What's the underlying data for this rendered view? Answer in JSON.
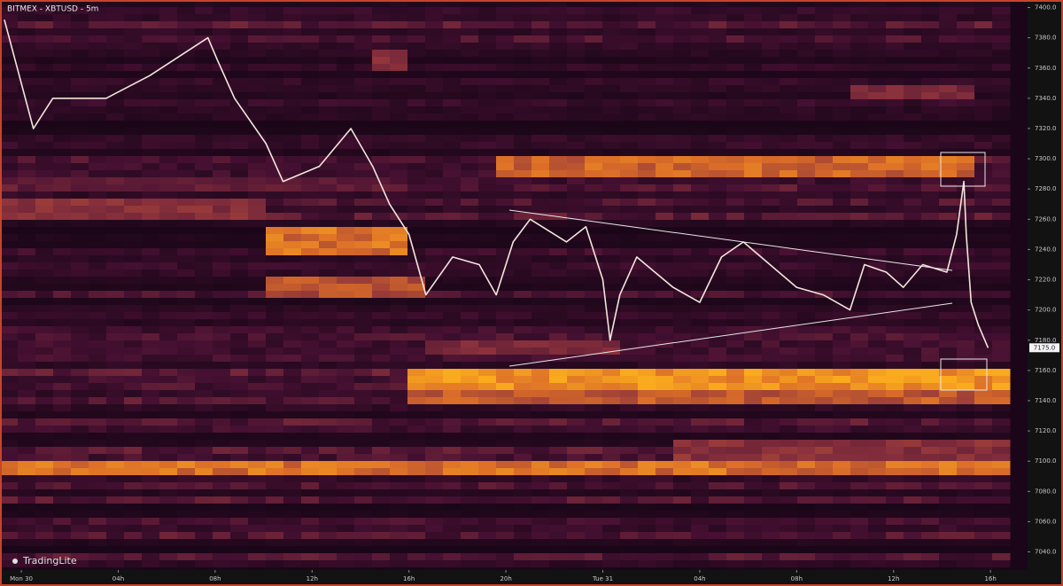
{
  "chart_data": {
    "type": "line",
    "title": "BITMEX - XBTUSD - 5m",
    "watermark": "TradingLite",
    "last_price_label": "7175.0",
    "last_price": 7175,
    "xlim": [
      -0.88,
      41.53
    ],
    "ylim": [
      7028,
      7405
    ],
    "xticks": [
      {
        "value": 0,
        "label": "Mon 30"
      },
      {
        "value": 4,
        "label": "04h"
      },
      {
        "value": 8,
        "label": "08h"
      },
      {
        "value": 12,
        "label": "12h"
      },
      {
        "value": 16,
        "label": "16h"
      },
      {
        "value": 20,
        "label": "20h"
      },
      {
        "value": 24,
        "label": "Tue 31"
      },
      {
        "value": 28,
        "label": "04h"
      },
      {
        "value": 32,
        "label": "08h"
      },
      {
        "value": 36,
        "label": "12h"
      },
      {
        "value": 40,
        "label": "16h"
      }
    ],
    "yticks": [
      {
        "value": 7040,
        "label": "7040.0"
      },
      {
        "value": 7060,
        "label": "7060.0"
      },
      {
        "value": 7080,
        "label": "7080.0"
      },
      {
        "value": 7100,
        "label": "7100.0"
      },
      {
        "value": 7120,
        "label": "7120.0"
      },
      {
        "value": 7140,
        "label": "7140.0"
      },
      {
        "value": 7160,
        "label": "7160.0"
      },
      {
        "value": 7180,
        "label": "7180.0"
      },
      {
        "value": 7200,
        "label": "7200.0"
      },
      {
        "value": 7220,
        "label": "7220.0"
      },
      {
        "value": 7240,
        "label": "7240.0"
      },
      {
        "value": 7260,
        "label": "7260.0"
      },
      {
        "value": 7280,
        "label": "7280.0"
      },
      {
        "value": 7300,
        "label": "7300.0"
      },
      {
        "value": 7320,
        "label": "7320.0"
      },
      {
        "value": 7340,
        "label": "7340.0"
      },
      {
        "value": 7360,
        "label": "7360.0"
      },
      {
        "value": 7380,
        "label": "7380.0"
      },
      {
        "value": 7400,
        "label": "7400.0"
      }
    ],
    "series": [
      {
        "name": "XBTUSD",
        "color": "#f2e6dc",
        "x": [
          -0.7,
          0.5,
          1.3,
          3.5,
          5.3,
          7.7,
          8.1,
          8.8,
          10.1,
          10.8,
          12.3,
          13.6,
          14.5,
          15.2,
          16.0,
          16.7,
          17.8,
          18.9,
          19.6,
          20.3,
          21.0,
          22.5,
          23.3,
          24.0,
          24.3,
          24.7,
          25.4,
          26.9,
          28.0,
          28.9,
          29.8,
          30.9,
          32.0,
          33.1,
          34.2,
          34.8,
          35.7,
          36.4,
          37.2,
          38.2,
          38.6,
          38.9,
          39.0,
          39.2,
          39.5,
          39.9
        ],
        "values": [
          7392,
          7320,
          7340,
          7340,
          7355,
          7380,
          7365,
          7340,
          7310,
          7285,
          7295,
          7320,
          7295,
          7270,
          7250,
          7210,
          7235,
          7230,
          7210,
          7245,
          7260,
          7245,
          7255,
          7220,
          7180,
          7210,
          7235,
          7215,
          7205,
          7235,
          7245,
          7230,
          7215,
          7210,
          7200,
          7230,
          7225,
          7215,
          7230,
          7225,
          7250,
          7285,
          7250,
          7205,
          7190,
          7175
        ]
      }
    ]
  }
}
